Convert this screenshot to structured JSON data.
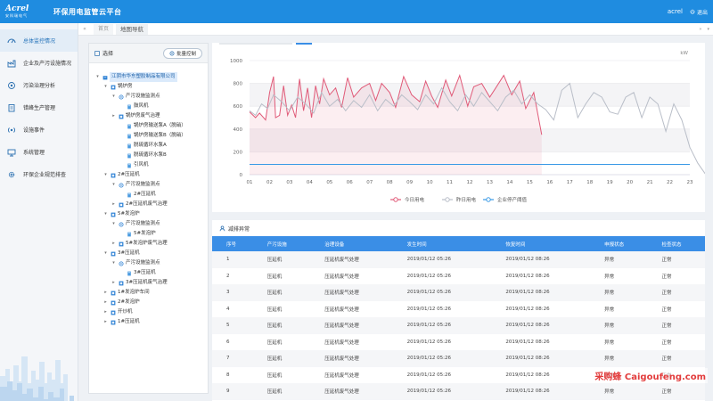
{
  "header": {
    "logo_text": "Acrel",
    "logo_sub": "安科瑞电气",
    "title": "环保用电监管云平台",
    "user": "acrel",
    "exit_label": "退出"
  },
  "sidebar": {
    "items": [
      {
        "label": "总体监控情况",
        "icon": "dashboard-icon"
      },
      {
        "label": "企业及产污设施情况",
        "icon": "factory-icon"
      },
      {
        "label": "污染治理分析",
        "icon": "target-icon"
      },
      {
        "label": "错峰生产管理",
        "icon": "clipboard-icon"
      },
      {
        "label": "设施事件",
        "icon": "broadcast-icon"
      },
      {
        "label": "系统管理",
        "icon": "monitor-icon"
      },
      {
        "label": "环保企业规范排查",
        "icon": "gear-icon"
      }
    ]
  },
  "tabbar": {
    "tab_home": "首页",
    "tab_current": "地图导航"
  },
  "tree": {
    "header_label": "选择",
    "batch_button": "批量控制",
    "nodes": [
      "江阴市华东塑胶制品有限公司",
      "锅炉房",
      "产污设施监测点",
      "鼓风机",
      "锅炉房废气治理",
      "锅炉房输送泵A（脱硝）",
      "锅炉房输送泵B（脱硝）",
      "脱硫循环水泵A",
      "脱硫循环水泵B",
      "引风机",
      "2#压延机",
      "产污设施监测点",
      "2#压延机",
      "2#压延机废气治理",
      "5#发泡炉",
      "产污设施监测点",
      "5#发泡炉",
      "5#发泡炉废气治理",
      "3#压延机",
      "产污设施监测点",
      "3#压延机",
      "3#压延机废气治理",
      "1#发泡炉车间",
      "2#发泡炉",
      "开炒机",
      "1#压延机"
    ]
  },
  "chart_data": {
    "type": "line",
    "unit": "kW",
    "x": [
      "01",
      "02",
      "03",
      "04",
      "05",
      "06",
      "07",
      "08",
      "09",
      "10",
      "11",
      "12",
      "13",
      "14",
      "15",
      "16",
      "17",
      "18",
      "19",
      "20",
      "21",
      "22",
      "23"
    ],
    "ylim": [
      0,
      1000
    ],
    "yticks": [
      0,
      200,
      400,
      600,
      800,
      1000
    ],
    "series": [
      {
        "name": "今日用电",
        "color": "#e05a78",
        "points": [
          [
            0.0,
            550
          ],
          [
            0.3,
            500
          ],
          [
            0.5,
            540
          ],
          [
            0.8,
            480
          ],
          [
            1.0,
            720
          ],
          [
            1.2,
            860
          ],
          [
            1.3,
            500
          ],
          [
            1.5,
            520
          ],
          [
            1.7,
            780
          ],
          [
            1.9,
            520
          ],
          [
            2.1,
            610
          ],
          [
            2.3,
            500
          ],
          [
            2.5,
            840
          ],
          [
            2.7,
            560
          ],
          [
            2.9,
            760
          ],
          [
            3.1,
            500
          ],
          [
            3.3,
            780
          ],
          [
            3.5,
            620
          ],
          [
            3.7,
            840
          ],
          [
            4.0,
            700
          ],
          [
            4.3,
            760
          ],
          [
            4.6,
            590
          ],
          [
            4.9,
            850
          ],
          [
            5.2,
            680
          ],
          [
            5.6,
            760
          ],
          [
            6.0,
            800
          ],
          [
            6.3,
            650
          ],
          [
            6.6,
            800
          ],
          [
            7.0,
            720
          ],
          [
            7.3,
            590
          ],
          [
            7.7,
            860
          ],
          [
            8.1,
            700
          ],
          [
            8.5,
            640
          ],
          [
            8.8,
            820
          ],
          [
            9.1,
            690
          ],
          [
            9.4,
            590
          ],
          [
            9.8,
            830
          ],
          [
            10.1,
            690
          ],
          [
            10.5,
            870
          ],
          [
            10.9,
            600
          ],
          [
            11.2,
            770
          ],
          [
            11.6,
            800
          ],
          [
            12.0,
            680
          ],
          [
            12.3,
            760
          ],
          [
            12.7,
            870
          ],
          [
            13.1,
            700
          ],
          [
            13.5,
            820
          ],
          [
            13.8,
            580
          ],
          [
            14.2,
            720
          ],
          [
            14.6,
            350
          ]
        ]
      },
      {
        "name": "昨日用电",
        "color": "#b9bec8",
        "points": [
          [
            0.0,
            560
          ],
          [
            0.3,
            520
          ],
          [
            0.6,
            620
          ],
          [
            0.9,
            580
          ],
          [
            1.2,
            700
          ],
          [
            1.6,
            640
          ],
          [
            2.0,
            560
          ],
          [
            2.4,
            680
          ],
          [
            2.8,
            620
          ],
          [
            3.2,
            540
          ],
          [
            3.6,
            720
          ],
          [
            4.0,
            600
          ],
          [
            4.4,
            660
          ],
          [
            4.8,
            560
          ],
          [
            5.2,
            650
          ],
          [
            5.6,
            590
          ],
          [
            6.0,
            700
          ],
          [
            6.4,
            560
          ],
          [
            6.8,
            660
          ],
          [
            7.2,
            600
          ],
          [
            7.6,
            700
          ],
          [
            8.0,
            640
          ],
          [
            8.4,
            570
          ],
          [
            8.8,
            700
          ],
          [
            9.2,
            620
          ],
          [
            9.6,
            760
          ],
          [
            10.0,
            640
          ],
          [
            10.4,
            560
          ],
          [
            10.8,
            700
          ],
          [
            11.2,
            600
          ],
          [
            11.6,
            720
          ],
          [
            12.0,
            640
          ],
          [
            12.4,
            560
          ],
          [
            12.8,
            680
          ],
          [
            13.2,
            740
          ],
          [
            13.6,
            620
          ],
          [
            14.0,
            700
          ],
          [
            14.4,
            620
          ],
          [
            14.8,
            570
          ],
          [
            15.2,
            480
          ],
          [
            15.6,
            740
          ],
          [
            16.0,
            800
          ],
          [
            16.4,
            500
          ],
          [
            16.8,
            620
          ],
          [
            17.2,
            720
          ],
          [
            17.6,
            680
          ],
          [
            18.0,
            550
          ],
          [
            18.4,
            530
          ],
          [
            18.8,
            680
          ],
          [
            19.2,
            720
          ],
          [
            19.6,
            500
          ],
          [
            20.0,
            680
          ],
          [
            20.4,
            620
          ],
          [
            20.8,
            380
          ],
          [
            21.2,
            620
          ],
          [
            21.6,
            480
          ],
          [
            22.0,
            240
          ],
          [
            22.4,
            100
          ],
          [
            22.8,
            0
          ]
        ]
      },
      {
        "name": "企业停产阈值",
        "color": "#3a9ae6",
        "constant": 90
      }
    ]
  },
  "table": {
    "title": "减排异常",
    "columns": [
      "序号",
      "产污设施",
      "治理设备",
      "发生时间",
      "恢复时间",
      "申报状态",
      "检查状态"
    ],
    "rows": [
      [
        "1",
        "压延机",
        "压延机废气处理",
        "2019/01/12  05:26",
        "2019/01/12  08:26",
        "异常",
        "正常"
      ],
      [
        "2",
        "压延机",
        "压延机废气处理",
        "2019/01/12  05:26",
        "2019/01/12  08:26",
        "异常",
        "正常"
      ],
      [
        "3",
        "压延机",
        "压延机废气处理",
        "2019/01/12  05:26",
        "2019/01/12  08:26",
        "异常",
        "正常"
      ],
      [
        "4",
        "压延机",
        "压延机废气处理",
        "2019/01/12  05:26",
        "2019/01/12  08:26",
        "异常",
        "正常"
      ],
      [
        "5",
        "压延机",
        "压延机废气处理",
        "2019/01/12  05:26",
        "2019/01/12  08:26",
        "异常",
        "正常"
      ],
      [
        "6",
        "压延机",
        "压延机废气处理",
        "2019/01/12  05:26",
        "2019/01/12  08:26",
        "异常",
        "正常"
      ],
      [
        "7",
        "压延机",
        "压延机废气处理",
        "2019/01/12  05:26",
        "2019/01/12  08:26",
        "异常",
        "正常"
      ],
      [
        "8",
        "压延机",
        "压延机废气处理",
        "2019/01/12  05:26",
        "2019/01/12  08:26",
        "异常",
        "正常"
      ],
      [
        "9",
        "压延机",
        "压延机废气处理",
        "2019/01/12  05:26",
        "2019/01/12  08:26",
        "异常",
        "正常"
      ]
    ]
  },
  "watermark": "采购蜂 Caigoufeng.com",
  "colors": {
    "header": "#1f8ce0",
    "table_head": "#3a8ee6",
    "today": "#e05a78",
    "yesterday": "#b9bec8",
    "threshold": "#3a9ae6"
  }
}
